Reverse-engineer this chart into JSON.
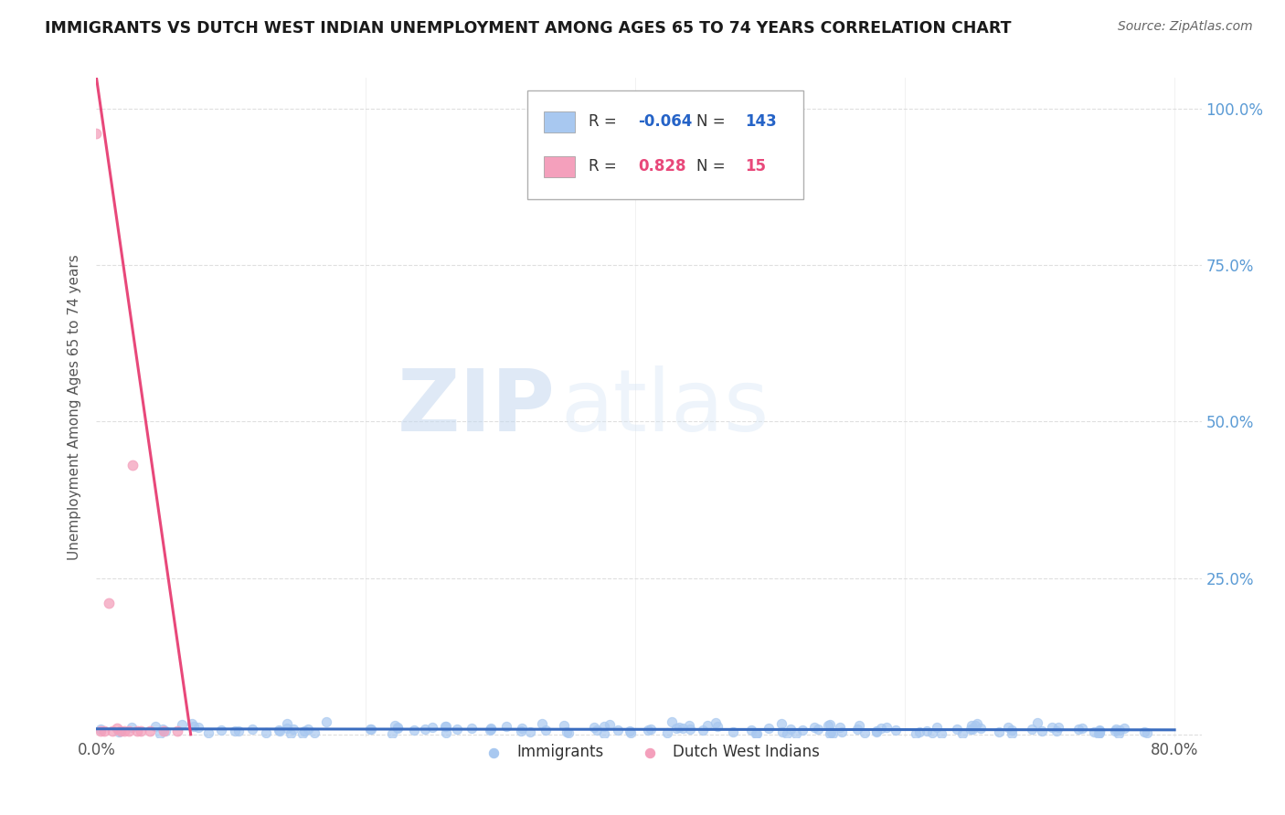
{
  "title": "IMMIGRANTS VS DUTCH WEST INDIAN UNEMPLOYMENT AMONG AGES 65 TO 74 YEARS CORRELATION CHART",
  "source": "Source: ZipAtlas.com",
  "ylabel": "Unemployment Among Ages 65 to 74 years",
  "blue_R": -0.064,
  "blue_N": 143,
  "pink_R": 0.828,
  "pink_N": 15,
  "blue_color": "#a8c8f0",
  "pink_color": "#f4a0bc",
  "blue_line_color": "#3a6cbf",
  "pink_line_color": "#e8487a",
  "blue_R_color": "#2563c7",
  "pink_R_color": "#e8487a",
  "xlim": [
    0.0,
    0.82
  ],
  "ylim": [
    -0.005,
    1.05
  ],
  "xticks": [
    0.0,
    0.2,
    0.4,
    0.6,
    0.8
  ],
  "yticks": [
    0.0,
    0.25,
    0.5,
    0.75,
    1.0
  ],
  "watermark_zip": "ZIP",
  "watermark_atlas": "atlas",
  "legend_labels": [
    "Immigrants",
    "Dutch West Indians"
  ],
  "background_color": "#ffffff",
  "grid_color": "#d8d8d8",
  "title_color": "#1a1a1a",
  "source_color": "#666666",
  "ylabel_color": "#555555",
  "ytick_color": "#5b9bd5",
  "xtick_color": "#555555",
  "pink_scatter_x": [
    0.0,
    0.003,
    0.006,
    0.009,
    0.012,
    0.015,
    0.018,
    0.021,
    0.024,
    0.027,
    0.03,
    0.033,
    0.04,
    0.05,
    0.06
  ],
  "pink_scatter_y": [
    0.96,
    0.005,
    0.005,
    0.21,
    0.005,
    0.01,
    0.005,
    0.005,
    0.005,
    0.43,
    0.005,
    0.005,
    0.005,
    0.005,
    0.005
  ],
  "pink_line_x0": 0.07,
  "pink_line_y0": 0.0,
  "pink_line_x1": 0.0,
  "pink_line_y1": 1.05
}
